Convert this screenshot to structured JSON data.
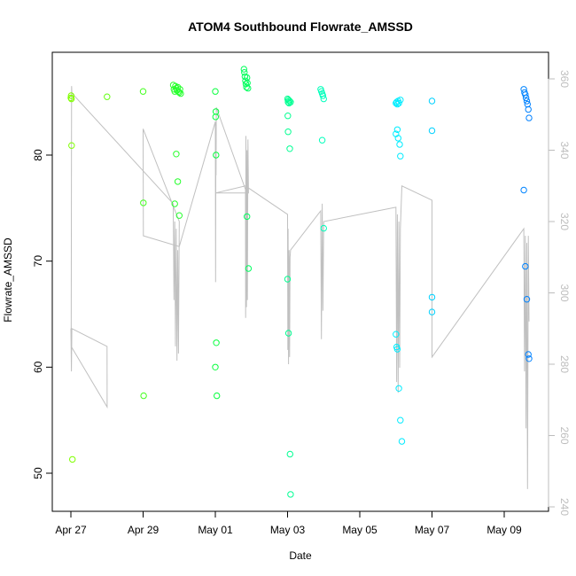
{
  "chart_data": {
    "type": "scatter",
    "title": "ATOM4 Southbound Flowrate_AMSSD",
    "xlabel": "Date",
    "ylabel": "Flowrate_AMSSD",
    "x_domain": [
      "2024-04-27",
      "2024-05-10"
    ],
    "ylim": [
      46,
      89
    ],
    "y2lim": [
      240,
      362
    ],
    "x_ticks": [
      {
        "date": "2024-04-27",
        "label": "Apr 27"
      },
      {
        "date": "2024-04-29",
        "label": "Apr 29"
      },
      {
        "date": "2024-05-01",
        "label": "May 01"
      },
      {
        "date": "2024-05-03",
        "label": "May 03"
      },
      {
        "date": "2024-05-05",
        "label": "May 05"
      },
      {
        "date": "2024-05-07",
        "label": "May 07"
      },
      {
        "date": "2024-05-09",
        "label": "May 09"
      }
    ],
    "y_ticks": [
      "50",
      "60",
      "70",
      "80"
    ],
    "y2_ticks": [
      "240",
      "260",
      "280",
      "300",
      "320",
      "340",
      "360"
    ],
    "grid": false,
    "legend": "none",
    "series": [
      {
        "marker": "open-circle",
        "color_gradient": [
          "#80ff00",
          "#00ff40",
          "#00ffff",
          "#0080ff"
        ],
        "points": [
          {
            "x": "2024-04-27T00:00",
            "y": 85.4
          },
          {
            "x": "2024-04-27T00:10",
            "y": 85.6
          },
          {
            "x": "2024-04-27T00:20",
            "y": 85.3
          },
          {
            "x": "2024-04-27T00:30",
            "y": 80.9
          },
          {
            "x": "2024-04-27T01:00",
            "y": 51.3
          },
          {
            "x": "2024-04-28T00:00",
            "y": 85.5
          },
          {
            "x": "2024-04-29T00:00",
            "y": 86.0
          },
          {
            "x": "2024-04-29T00:10",
            "y": 75.5
          },
          {
            "x": "2024-04-29T00:20",
            "y": 57.3
          },
          {
            "x": "2024-04-29T20:00",
            "y": 86.6
          },
          {
            "x": "2024-04-29T20:30",
            "y": 86.2
          },
          {
            "x": "2024-04-29T21:00",
            "y": 86.0
          },
          {
            "x": "2024-04-29T21:30",
            "y": 86.5
          },
          {
            "x": "2024-04-29T22:00",
            "y": 86.3
          },
          {
            "x": "2024-04-29T22:30",
            "y": 86.1
          },
          {
            "x": "2024-04-29T23:00",
            "y": 86.4
          },
          {
            "x": "2024-04-29T23:30",
            "y": 86.0
          },
          {
            "x": "2024-04-30T00:00",
            "y": 85.9
          },
          {
            "x": "2024-04-30T00:30",
            "y": 86.2
          },
          {
            "x": "2024-04-30T01:00",
            "y": 85.8
          },
          {
            "x": "2024-04-29T21:00",
            "y": 75.4
          },
          {
            "x": "2024-04-29T22:00",
            "y": 80.1
          },
          {
            "x": "2024-04-29T23:00",
            "y": 77.5
          },
          {
            "x": "2024-04-30T00:00",
            "y": 74.3
          },
          {
            "x": "2024-05-01T00:00",
            "y": 86.0
          },
          {
            "x": "2024-05-01T00:10",
            "y": 83.6
          },
          {
            "x": "2024-05-01T00:20",
            "y": 84.1
          },
          {
            "x": "2024-05-01T00:30",
            "y": 80.0
          },
          {
            "x": "2024-05-01T00:40",
            "y": 62.3
          },
          {
            "x": "2024-05-01T00:00",
            "y": 60.0
          },
          {
            "x": "2024-05-01T01:00",
            "y": 57.3
          },
          {
            "x": "2024-05-01T19:00",
            "y": 88.1
          },
          {
            "x": "2024-05-01T19:20",
            "y": 87.8
          },
          {
            "x": "2024-05-01T19:40",
            "y": 87.4
          },
          {
            "x": "2024-05-01T20:00",
            "y": 87.0
          },
          {
            "x": "2024-05-01T20:20",
            "y": 86.7
          },
          {
            "x": "2024-05-01T20:40",
            "y": 86.4
          },
          {
            "x": "2024-05-01T21:00",
            "y": 87.3
          },
          {
            "x": "2024-05-01T21:20",
            "y": 86.8
          },
          {
            "x": "2024-05-01T21:40",
            "y": 86.3
          },
          {
            "x": "2024-05-01T21:00",
            "y": 74.2
          },
          {
            "x": "2024-05-01T22:00",
            "y": 69.3
          },
          {
            "x": "2024-05-03T00:00",
            "y": 85.3
          },
          {
            "x": "2024-05-03T00:20",
            "y": 85.0
          },
          {
            "x": "2024-05-03T00:40",
            "y": 85.2
          },
          {
            "x": "2024-05-03T01:00",
            "y": 84.9
          },
          {
            "x": "2024-05-03T01:20",
            "y": 85.1
          },
          {
            "x": "2024-05-03T02:00",
            "y": 85.0
          },
          {
            "x": "2024-05-03T00:10",
            "y": 83.7
          },
          {
            "x": "2024-05-03T00:20",
            "y": 82.2
          },
          {
            "x": "2024-05-03T01:30",
            "y": 80.6
          },
          {
            "x": "2024-05-03T00:00",
            "y": 68.3
          },
          {
            "x": "2024-05-03T00:40",
            "y": 63.2
          },
          {
            "x": "2024-05-03T01:40",
            "y": 51.8
          },
          {
            "x": "2024-05-03T02:00",
            "y": 48.0
          },
          {
            "x": "2024-05-03T22:00",
            "y": 86.2
          },
          {
            "x": "2024-05-03T22:30",
            "y": 86.0
          },
          {
            "x": "2024-05-03T23:00",
            "y": 85.8
          },
          {
            "x": "2024-05-03T23:30",
            "y": 85.6
          },
          {
            "x": "2024-05-04T00:00",
            "y": 85.3
          },
          {
            "x": "2024-05-03T23:00",
            "y": 81.4
          },
          {
            "x": "2024-05-04T00:00",
            "y": 73.1
          },
          {
            "x": "2024-05-06T00:00",
            "y": 84.9
          },
          {
            "x": "2024-05-06T00:30",
            "y": 85.0
          },
          {
            "x": "2024-05-06T01:00",
            "y": 84.8
          },
          {
            "x": "2024-05-06T01:30",
            "y": 85.1
          },
          {
            "x": "2024-05-06T02:00",
            "y": 84.9
          },
          {
            "x": "2024-05-06T03:00",
            "y": 85.2
          },
          {
            "x": "2024-05-06T00:00",
            "y": 82.0
          },
          {
            "x": "2024-05-06T01:00",
            "y": 82.4
          },
          {
            "x": "2024-05-06T01:30",
            "y": 81.6
          },
          {
            "x": "2024-05-06T02:30",
            "y": 81.0
          },
          {
            "x": "2024-05-06T03:00",
            "y": 79.9
          },
          {
            "x": "2024-05-06T00:00",
            "y": 63.1
          },
          {
            "x": "2024-05-06T00:30",
            "y": 61.9
          },
          {
            "x": "2024-05-06T01:00",
            "y": 61.7
          },
          {
            "x": "2024-05-06T02:00",
            "y": 58.0
          },
          {
            "x": "2024-05-06T03:00",
            "y": 55.0
          },
          {
            "x": "2024-05-06T04:00",
            "y": 53.0
          },
          {
            "x": "2024-05-07T00:00",
            "y": 85.1
          },
          {
            "x": "2024-05-07T00:00",
            "y": 82.3
          },
          {
            "x": "2024-05-07T00:00",
            "y": 66.6
          },
          {
            "x": "2024-05-07T00:00",
            "y": 65.2
          },
          {
            "x": "2024-05-09T13:00",
            "y": 86.2
          },
          {
            "x": "2024-05-09T13:30",
            "y": 85.9
          },
          {
            "x": "2024-05-09T14:00",
            "y": 85.7
          },
          {
            "x": "2024-05-09T14:30",
            "y": 85.4
          },
          {
            "x": "2024-05-09T15:00",
            "y": 85.1
          },
          {
            "x": "2024-05-09T15:30",
            "y": 84.8
          },
          {
            "x": "2024-05-09T16:00",
            "y": 84.3
          },
          {
            "x": "2024-05-09T16:30",
            "y": 83.5
          },
          {
            "x": "2024-05-09T13:00",
            "y": 76.7
          },
          {
            "x": "2024-05-09T14:00",
            "y": 69.5
          },
          {
            "x": "2024-05-09T15:00",
            "y": 66.4
          },
          {
            "x": "2024-05-09T16:00",
            "y": 61.2
          },
          {
            "x": "2024-05-09T16:30",
            "y": 60.8
          }
        ]
      },
      {
        "marker": "line",
        "axis": "right",
        "color": "#c0c0c0",
        "points": [
          {
            "x": "2024-04-27T00:00",
            "y": 290
          },
          {
            "x": "2024-04-27T00:20",
            "y": 278
          },
          {
            "x": "2024-04-27T00:40",
            "y": 290
          },
          {
            "x": "2024-04-28T00:00",
            "y": 285
          },
          {
            "x": "2024-04-28T00:05",
            "y": 268
          },
          {
            "x": "2024-04-27T00:10",
            "y": 285
          },
          {
            "x": "2024-04-27T00:30",
            "y": 358
          },
          {
            "x": "2024-04-27T00:40",
            "y": 356
          },
          {
            "x": "2024-04-29T20:00",
            "y": 325
          },
          {
            "x": "2024-04-29T20:30",
            "y": 298
          },
          {
            "x": "2024-04-29T21:00",
            "y": 320
          },
          {
            "x": "2024-04-29T21:30",
            "y": 285
          },
          {
            "x": "2024-04-29T22:00",
            "y": 318
          },
          {
            "x": "2024-04-29T22:30",
            "y": 281
          },
          {
            "x": "2024-04-29T23:00",
            "y": 312
          },
          {
            "x": "2024-04-29T23:30",
            "y": 283
          },
          {
            "x": "2024-04-30T00:00",
            "y": 320
          },
          {
            "x": "2024-04-29T00:00",
            "y": 346
          },
          {
            "x": "2024-04-29T00:10",
            "y": 316
          },
          {
            "x": "2024-04-30T00:00",
            "y": 313
          },
          {
            "x": "2024-05-01T00:00",
            "y": 348
          },
          {
            "x": "2024-05-01T00:10",
            "y": 303
          },
          {
            "x": "2024-05-01T00:20",
            "y": 342
          },
          {
            "x": "2024-05-01T00:30",
            "y": 333
          },
          {
            "x": "2024-05-01T00:40",
            "y": 352
          },
          {
            "x": "2024-05-01T20:00",
            "y": 329
          },
          {
            "x": "2024-05-01T20:10",
            "y": 293
          },
          {
            "x": "2024-05-01T20:20",
            "y": 344
          },
          {
            "x": "2024-05-01T20:40",
            "y": 296
          },
          {
            "x": "2024-05-01T21:00",
            "y": 340
          },
          {
            "x": "2024-05-01T21:20",
            "y": 298
          },
          {
            "x": "2024-05-01T21:40",
            "y": 343
          },
          {
            "x": "2024-05-01T22:00",
            "y": 328
          },
          {
            "x": "2024-05-01T00:00",
            "y": 328
          },
          {
            "x": "2024-05-01T20:00",
            "y": 330
          },
          {
            "x": "2024-05-03T00:00",
            "y": 322
          },
          {
            "x": "2024-05-03T00:10",
            "y": 284
          },
          {
            "x": "2024-05-03T00:20",
            "y": 318
          },
          {
            "x": "2024-05-03T00:40",
            "y": 280
          },
          {
            "x": "2024-05-03T01:00",
            "y": 312
          },
          {
            "x": "2024-05-03T01:20",
            "y": 282
          },
          {
            "x": "2024-05-03T01:40",
            "y": 310
          },
          {
            "x": "2024-05-03T02:00",
            "y": 312
          },
          {
            "x": "2024-05-03T22:00",
            "y": 323
          },
          {
            "x": "2024-05-03T22:30",
            "y": 287
          },
          {
            "x": "2024-05-03T23:00",
            "y": 325
          },
          {
            "x": "2024-05-03T23:30",
            "y": 295
          },
          {
            "x": "2024-05-04T00:00",
            "y": 320
          },
          {
            "x": "2024-05-06T00:00",
            "y": 324
          },
          {
            "x": "2024-05-06T00:30",
            "y": 275
          },
          {
            "x": "2024-05-06T01:00",
            "y": 322
          },
          {
            "x": "2024-05-06T01:30",
            "y": 272
          },
          {
            "x": "2024-05-06T02:00",
            "y": 320
          },
          {
            "x": "2024-05-06T02:30",
            "y": 279
          },
          {
            "x": "2024-05-06T03:00",
            "y": 318
          },
          {
            "x": "2024-05-06T04:00",
            "y": 330
          },
          {
            "x": "2024-05-07T00:00",
            "y": 326
          },
          {
            "x": "2024-05-07T00:00",
            "y": 282
          },
          {
            "x": "2024-05-09T13:00",
            "y": 318
          },
          {
            "x": "2024-05-09T13:30",
            "y": 278
          },
          {
            "x": "2024-05-09T14:00",
            "y": 316
          },
          {
            "x": "2024-05-09T14:30",
            "y": 262
          },
          {
            "x": "2024-05-09T15:00",
            "y": 314
          },
          {
            "x": "2024-05-09T15:30",
            "y": 245
          },
          {
            "x": "2024-05-09T16:00",
            "y": 316
          },
          {
            "x": "2024-05-09T16:30",
            "y": 292
          }
        ]
      }
    ]
  }
}
